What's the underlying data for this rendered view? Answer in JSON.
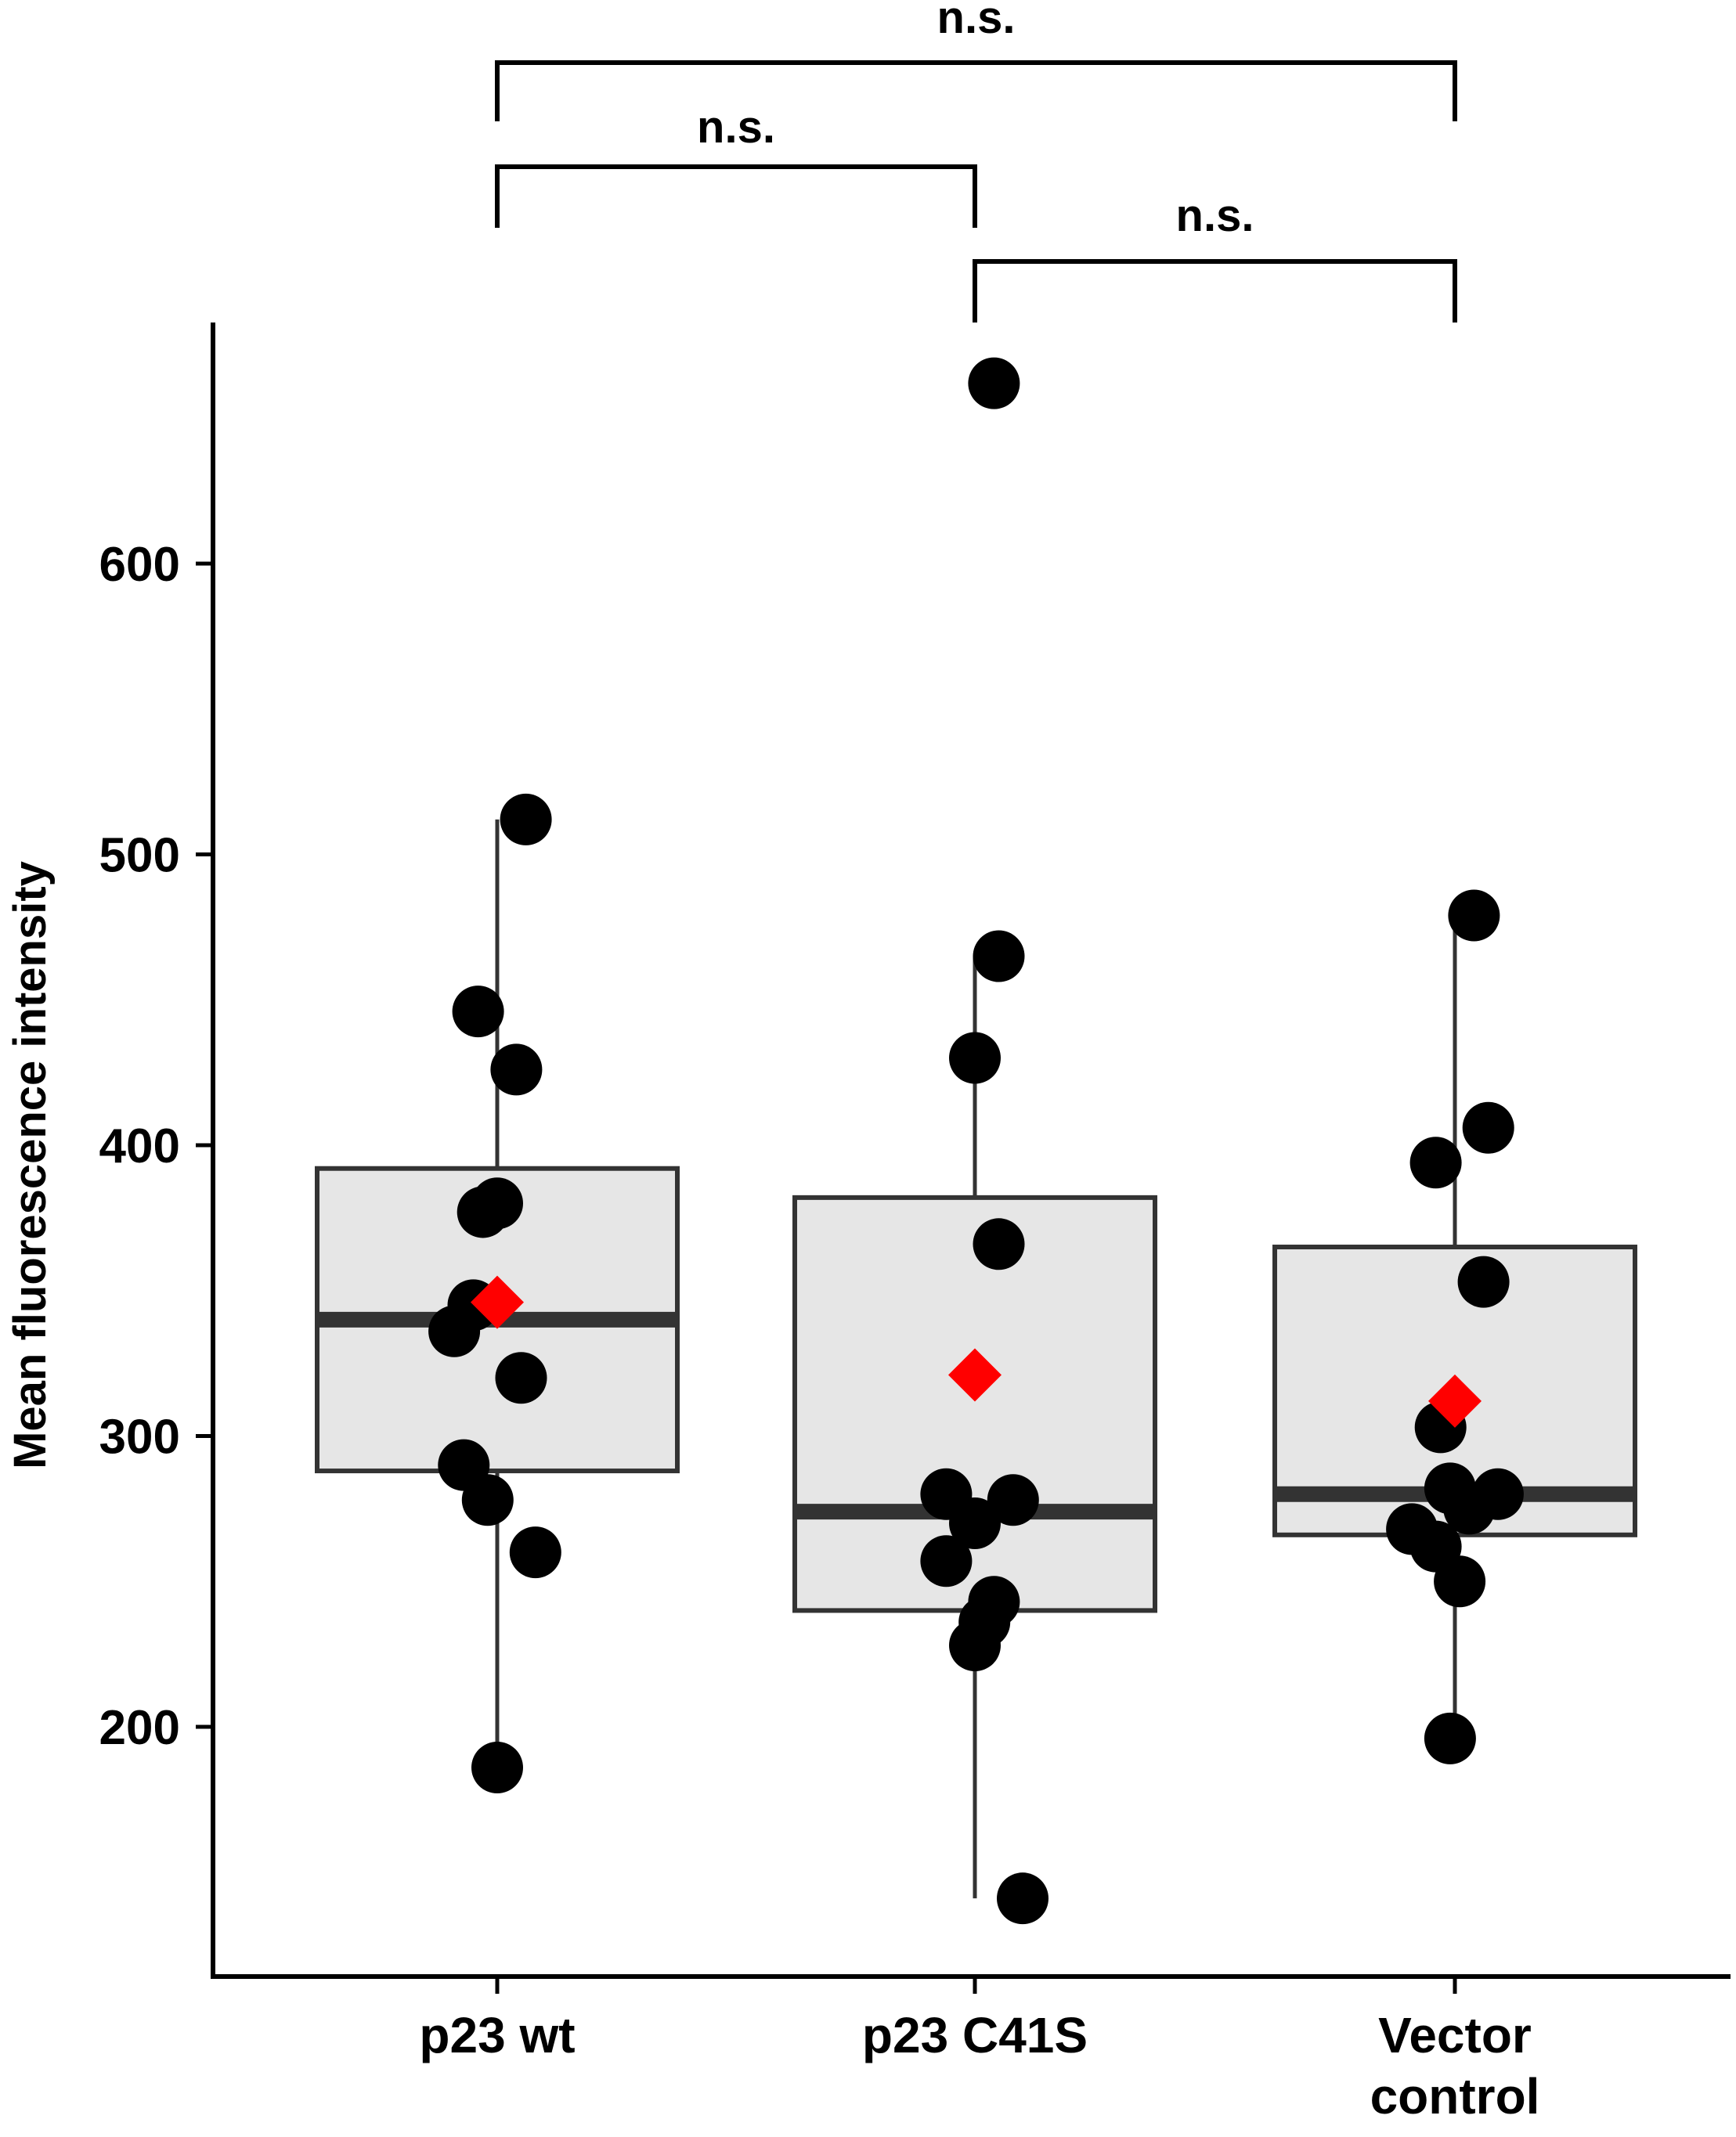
{
  "chart_data": {
    "type": "box",
    "xlabel": "",
    "ylabel": "Mean fluorescence intensity",
    "ylim": [
      132,
      690
    ],
    "yticks": [
      200,
      300,
      400,
      500,
      600
    ],
    "categories": [
      "p23 wt",
      "p23 C41S",
      "Vector control"
    ],
    "category_label_lines": [
      [
        "p23 wt"
      ],
      [
        "p23 C41S"
      ],
      [
        "Vector",
        "control"
      ]
    ],
    "grid": false,
    "legend": "none",
    "colors": {
      "box_fill": "#e6e6e6",
      "box_stroke": "#333333",
      "median": "#333333",
      "points": "#000000",
      "mean_marker": "#ff0000",
      "axis": "#000000"
    },
    "series": [
      {
        "category": "p23 wt",
        "box": {
          "q1": 288,
          "median": 340,
          "q3": 392,
          "whisker_low": 186,
          "whisker_high": 512
        },
        "mean": 346,
        "points": [
          {
            "dx": 0.06,
            "y": 512
          },
          {
            "dx": -0.04,
            "y": 446
          },
          {
            "dx": 0.04,
            "y": 426
          },
          {
            "dx": 0.0,
            "y": 380
          },
          {
            "dx": -0.03,
            "y": 377
          },
          {
            "dx": -0.05,
            "y": 345
          },
          {
            "dx": -0.09,
            "y": 336
          },
          {
            "dx": 0.05,
            "y": 320
          },
          {
            "dx": -0.07,
            "y": 290
          },
          {
            "dx": -0.02,
            "y": 278
          },
          {
            "dx": 0.08,
            "y": 260
          },
          {
            "dx": 0.0,
            "y": 186
          }
        ]
      },
      {
        "category": "p23 C41S",
        "box": {
          "q1": 240,
          "median": 274,
          "q3": 382,
          "whisker_low": 141,
          "whisker_high": 465
        },
        "mean": 321,
        "points": [
          {
            "dx": 0.04,
            "y": 662
          },
          {
            "dx": 0.05,
            "y": 465
          },
          {
            "dx": 0.0,
            "y": 430
          },
          {
            "dx": 0.05,
            "y": 366
          },
          {
            "dx": -0.06,
            "y": 280
          },
          {
            "dx": 0.08,
            "y": 278
          },
          {
            "dx": 0.0,
            "y": 270
          },
          {
            "dx": -0.06,
            "y": 257
          },
          {
            "dx": 0.04,
            "y": 243
          },
          {
            "dx": 0.02,
            "y": 236
          },
          {
            "dx": 0.0,
            "y": 228
          },
          {
            "dx": 0.1,
            "y": 141
          }
        ]
      },
      {
        "category": "Vector control",
        "box": {
          "q1": 266,
          "median": 280,
          "q3": 365,
          "whisker_low": 196,
          "whisker_high": 479
        },
        "mean": 312,
        "points": [
          {
            "dx": 0.04,
            "y": 479
          },
          {
            "dx": 0.07,
            "y": 406
          },
          {
            "dx": -0.04,
            "y": 394
          },
          {
            "dx": 0.06,
            "y": 353
          },
          {
            "dx": -0.03,
            "y": 303
          },
          {
            "dx": -0.01,
            "y": 282
          },
          {
            "dx": 0.09,
            "y": 280
          },
          {
            "dx": 0.03,
            "y": 275
          },
          {
            "dx": -0.09,
            "y": 268
          },
          {
            "dx": -0.04,
            "y": 262
          },
          {
            "dx": 0.01,
            "y": 250
          },
          {
            "dx": -0.01,
            "y": 196
          }
        ]
      }
    ],
    "annotations": [
      {
        "from": "p23 wt",
        "to": "Vector control",
        "label": "n.s."
      },
      {
        "from": "p23 wt",
        "to": "p23 C41S",
        "label": "n.s."
      },
      {
        "from": "p23 C41S",
        "to": "Vector control",
        "label": "n.s."
      }
    ]
  }
}
